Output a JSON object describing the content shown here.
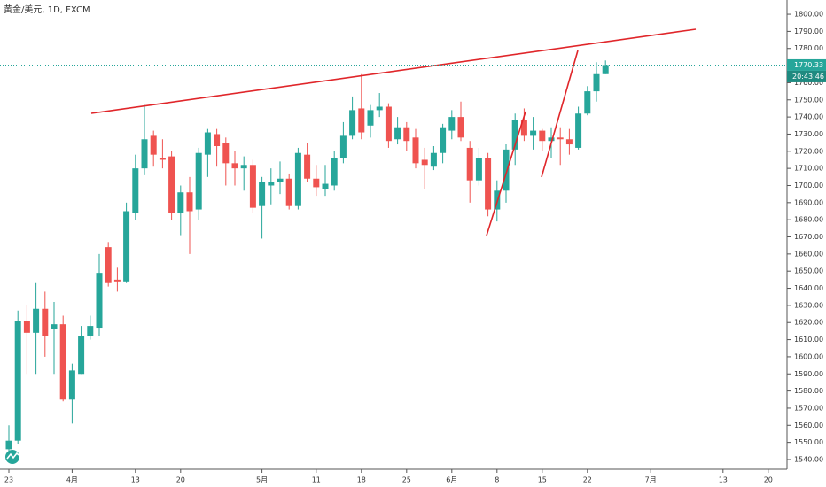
{
  "chart_data": {
    "type": "candlestick",
    "title": "黄金/美元, 1D, FXCM",
    "categories": [
      "23",
      null,
      null,
      null,
      null,
      null,
      null,
      "4月",
      null,
      null,
      null,
      null,
      null,
      null,
      "13",
      null,
      null,
      null,
      null,
      "20",
      null,
      null,
      null,
      null,
      null,
      null,
      null,
      null,
      "5月",
      null,
      null,
      null,
      null,
      null,
      "11",
      null,
      null,
      null,
      null,
      "18",
      null,
      null,
      null,
      null,
      "25",
      null,
      null,
      null,
      null,
      "6月",
      null,
      null,
      null,
      null,
      "8",
      null,
      null,
      null,
      null,
      "15",
      null,
      null,
      null,
      null,
      "22",
      null,
      null,
      null,
      null,
      null,
      null,
      "7月",
      null,
      null,
      null,
      null,
      null,
      null,
      null,
      "13",
      null,
      null,
      null,
      null,
      "20"
    ],
    "open": [
      1546,
      1551,
      1621,
      1614,
      1628,
      1616,
      1619,
      1575,
      1590,
      1612,
      1617,
      1664,
      1645,
      1644,
      1684,
      1710,
      1729,
      1716,
      1717,
      1684,
      1696,
      1686,
      1718,
      1730,
      1725,
      1713,
      1710,
      1712,
      1688,
      1700,
      1702,
      1704,
      1688,
      1718,
      1704,
      1698,
      1700,
      1716,
      1729,
      1745,
      1735,
      1744,
      1746,
      1727,
      1734,
      1728,
      1715,
      1711,
      1719,
      1732,
      1740,
      1722,
      1703,
      1716,
      1686,
      1697,
      1721,
      1738,
      1729,
      1732,
      1726,
      1728,
      1727,
      1722,
      1742,
      1755,
      1765,
      null,
      null,
      null,
      null,
      null,
      null,
      null,
      null,
      null,
      null,
      null,
      null,
      null,
      null,
      null,
      null,
      null,
      null
    ],
    "high": [
      1560,
      1627,
      1630,
      1643,
      1638,
      1632,
      1624,
      1596,
      1618,
      1624,
      1660,
      1667,
      1652,
      1690,
      1718,
      1747,
      1732,
      1727,
      1720,
      1700,
      1705,
      1722,
      1733,
      1733,
      1728,
      1720,
      1717,
      1715,
      1705,
      1710,
      1714,
      1707,
      1722,
      1725,
      1712,
      1712,
      1720,
      1737,
      1752,
      1765,
      1747,
      1754,
      1748,
      1740,
      1737,
      1733,
      1722,
      1723,
      1736,
      1744,
      1749,
      1726,
      1722,
      1719,
      1703,
      1724,
      1742,
      1745,
      1740,
      1733,
      1734,
      1734,
      1733,
      1746,
      1758,
      1772,
      1773,
      null,
      null,
      null,
      null,
      null,
      null,
      null,
      null,
      null,
      null,
      null,
      null,
      null,
      null,
      null,
      null,
      null,
      null
    ],
    "low": [
      1540,
      1549,
      1590,
      1590,
      1600,
      1590,
      1574,
      1561,
      1590,
      1610,
      1612,
      1641,
      1638,
      1643,
      1680,
      1706,
      1711,
      1710,
      1680,
      1671,
      1660,
      1680,
      1705,
      1711,
      1700,
      1700,
      1697,
      1684,
      1669,
      1689,
      1695,
      1686,
      1686,
      1702,
      1694,
      1694,
      1697,
      1713,
      1727,
      1727,
      1728,
      1740,
      1722,
      1724,
      1720,
      1710,
      1698,
      1709,
      1713,
      1727,
      1726,
      1690,
      1700,
      1682,
      1679,
      1690,
      1712,
      1726,
      1721,
      1720,
      1716,
      1712,
      1718,
      1721,
      1741,
      1749,
      1765,
      null,
      null,
      null,
      null,
      null,
      null,
      null,
      null,
      null,
      null,
      null,
      null,
      null,
      null,
      null,
      null,
      null,
      null
    ],
    "close": [
      1551,
      1621,
      1614,
      1628,
      1612,
      1619,
      1575,
      1592,
      1612,
      1618,
      1649,
      1643,
      1644,
      1685,
      1710,
      1727,
      1718,
      1715,
      1684,
      1696,
      1685,
      1719,
      1731,
      1723,
      1713,
      1710,
      1712,
      1687,
      1702,
      1702,
      1704,
      1688,
      1719,
      1704,
      1699,
      1701,
      1716,
      1729,
      1744,
      1731,
      1744,
      1746,
      1726,
      1734,
      1726,
      1713,
      1712,
      1719,
      1734,
      1740,
      1728,
      1703,
      1716,
      1686,
      1697,
      1721,
      1738,
      1729,
      1732,
      1726,
      1728,
      1727,
      1724,
      1742,
      1755,
      1765,
      1770.33,
      null,
      null,
      null,
      null,
      null,
      null,
      null,
      null,
      null,
      null,
      null,
      null,
      null,
      null,
      null,
      null,
      null,
      null
    ],
    "up_color": "#26a69a",
    "down_color": "#ef5350",
    "last_price": 1770.33,
    "last_price_label": "1770.33",
    "countdown": "20:43:46",
    "ylim": [
      1534.3,
      1808.3
    ],
    "yticks": [
      {
        "value": 1540,
        "label": "1540.00"
      },
      {
        "value": 1550,
        "label": "1550.00"
      },
      {
        "value": 1560,
        "label": "1560.00"
      },
      {
        "value": 1570,
        "label": "1570.00"
      },
      {
        "value": 1580,
        "label": "1580.00"
      },
      {
        "value": 1590,
        "label": "1590.00"
      },
      {
        "value": 1600,
        "label": "1600.00"
      },
      {
        "value": 1610,
        "label": "1610.00"
      },
      {
        "value": 1620,
        "label": "1620.00"
      },
      {
        "value": 1630,
        "label": "1630.00"
      },
      {
        "value": 1640,
        "label": "1640.00"
      },
      {
        "value": 1650,
        "label": "1650.00"
      },
      {
        "value": 1660,
        "label": "1660.00"
      },
      {
        "value": 1670,
        "label": "1670.00"
      },
      {
        "value": 1680,
        "label": "1680.00"
      },
      {
        "value": 1690,
        "label": "1690.00"
      },
      {
        "value": 1700,
        "label": "1700.00"
      },
      {
        "value": 1710,
        "label": "1710.00"
      },
      {
        "value": 1720,
        "label": "1720.00"
      },
      {
        "value": 1730,
        "label": "1730.00"
      },
      {
        "value": 1740,
        "label": "1740.00"
      },
      {
        "value": 1750,
        "label": "1750.00"
      },
      {
        "value": 1760,
        "label": "1760.00"
      },
      {
        "value": 1770,
        "label": "1770.00"
      },
      {
        "value": 1780,
        "label": "1780.00"
      },
      {
        "value": 1790,
        "label": "1790.00"
      },
      {
        "value": 1800,
        "label": "1800.00"
      }
    ]
  }
}
